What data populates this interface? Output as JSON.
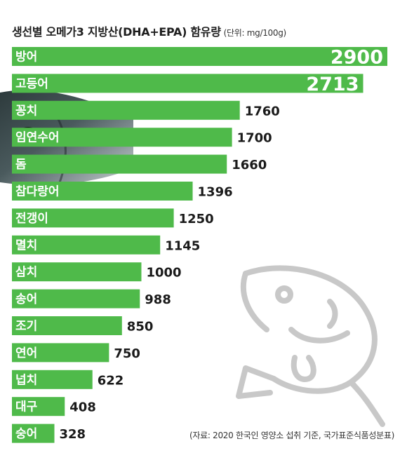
{
  "title": {
    "main": "생선별 오메가3 지방산(DHA+EPA) 함유량",
    "unit": "(단위: mg/100g)"
  },
  "source": "(자료: 2020 한국인 영양소 섭취 기준, 국가표준식품성분표)",
  "colors": {
    "bar": "#4fba4a",
    "bar_label": "#ffffff",
    "value_label": "#1a1a1a",
    "fish_line": "#c8c8c8"
  },
  "chart_data": {
    "type": "bar",
    "orientation": "horizontal",
    "title": "생선별 오메가3 지방산(DHA+EPA) 함유량",
    "unit": "(단위: mg/100g)",
    "categories": [
      "방어",
      "고등어",
      "꽁치",
      "임연수어",
      "돔",
      "참다랑어",
      "전갱이",
      "멸치",
      "삼치",
      "송어",
      "조기",
      "연어",
      "넙치",
      "대구",
      "숭어"
    ],
    "values": [
      2900,
      2713,
      1760,
      1700,
      1660,
      1396,
      1250,
      1145,
      1000,
      988,
      850,
      750,
      622,
      408,
      328
    ],
    "xlim": [
      0,
      2900
    ],
    "grid": false,
    "legend": "none"
  }
}
